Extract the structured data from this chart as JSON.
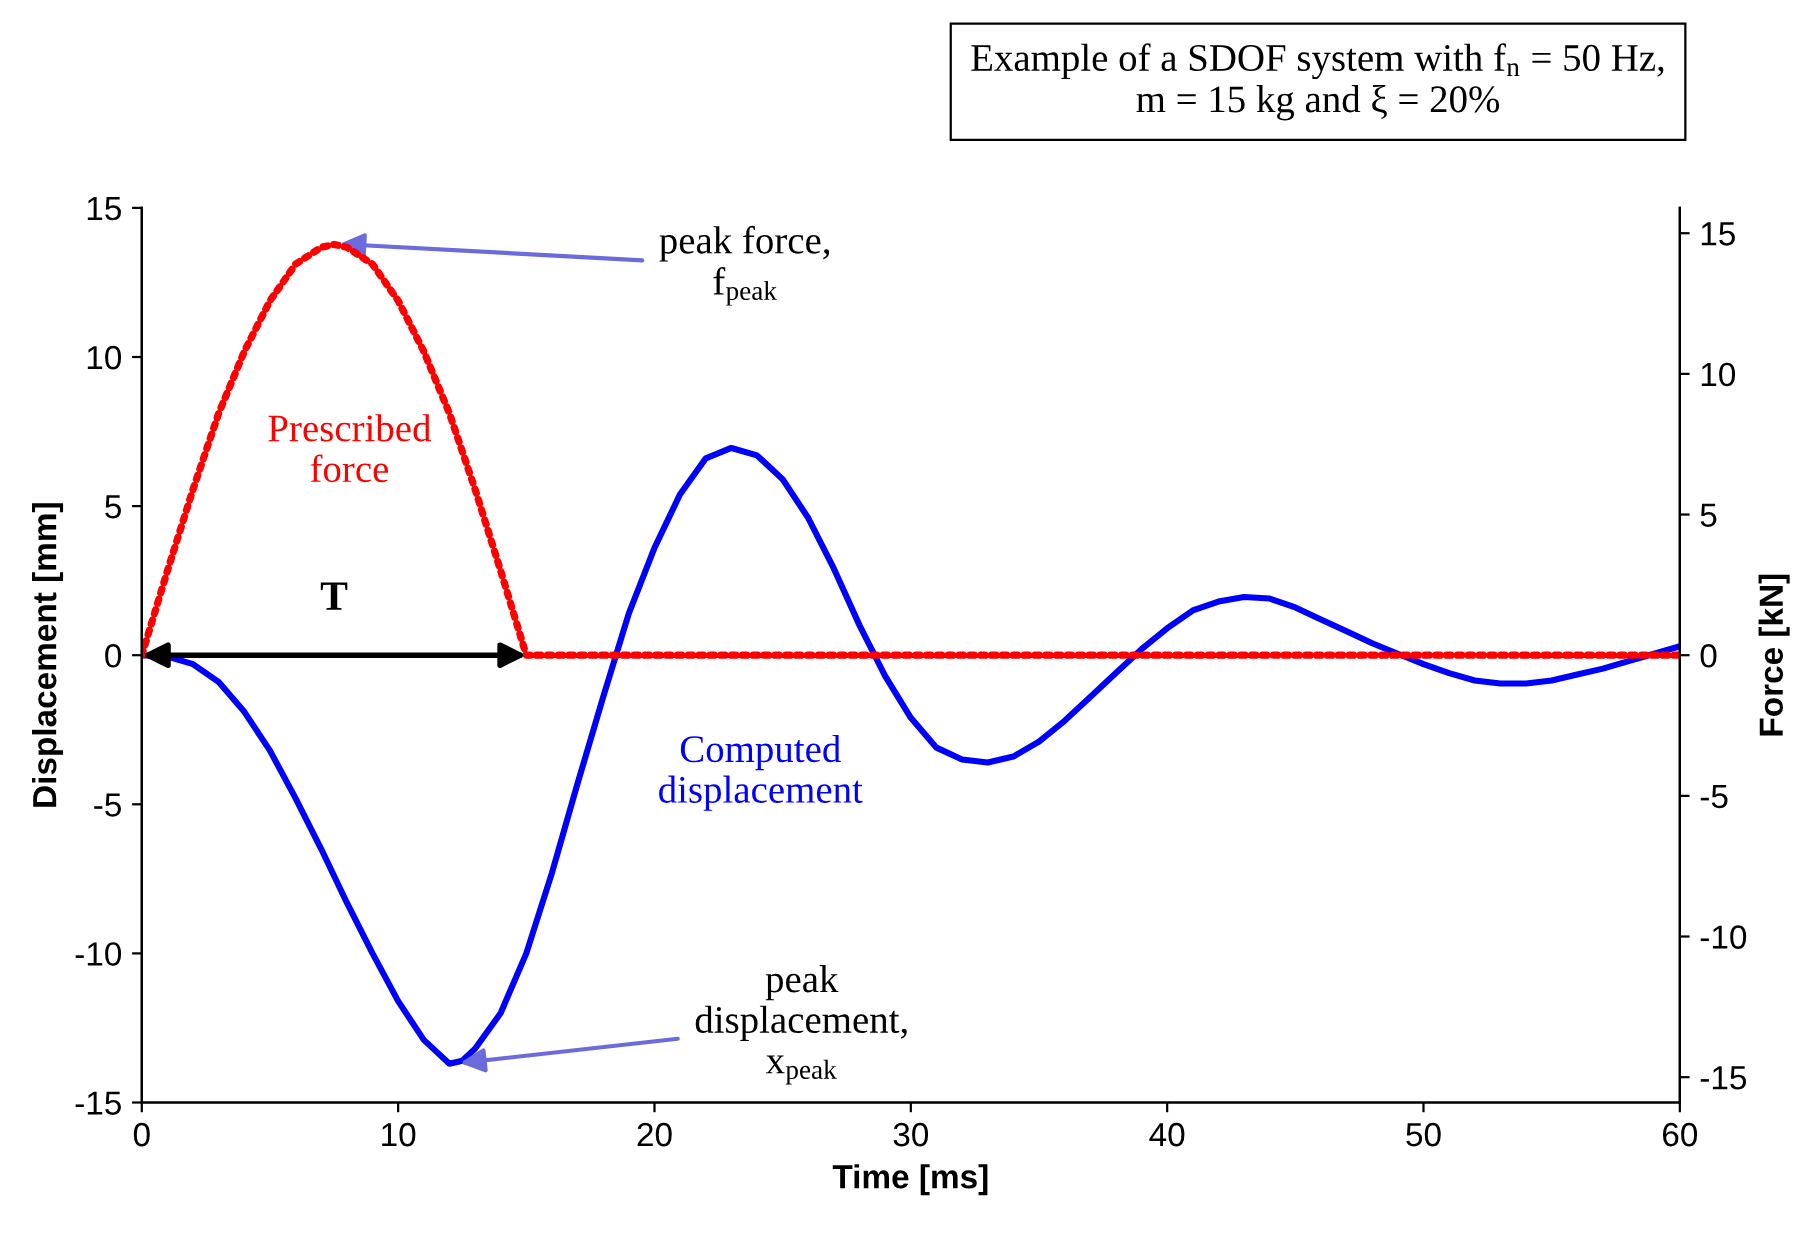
{
  "chart_data": {
    "type": "line",
    "title": "Example of a SDOF system with f$_{n}$ = 50 Hz,\nm = 15 kg and ξ = 20%",
    "xlabel": "Time [ms]",
    "ylabel": "Displacement [mm]",
    "y2label": "Force [kN]",
    "xlim": [
      0,
      60
    ],
    "xticks": [
      0,
      10,
      20,
      30,
      40,
      50,
      60
    ],
    "ylim": [
      -15,
      15
    ],
    "yticks": [
      -15,
      -10,
      -5,
      0,
      5,
      10,
      15
    ],
    "y2lim": [
      -15.9,
      15.9
    ],
    "y2ticks": [
      -15,
      -10,
      -5,
      0,
      5,
      10,
      15
    ],
    "grid": false,
    "series": [
      {
        "name": "Prescribed force",
        "axis": "y2",
        "color": "#ff0000",
        "line_style": "dotted",
        "x": [
          0,
          1,
          2,
          3,
          4,
          5,
          6,
          7,
          7.5,
          8,
          9,
          10,
          11,
          12,
          13,
          14,
          15,
          60
        ],
        "values": [
          0,
          3.0,
          5.9,
          8.6,
          10.8,
          12.6,
          13.9,
          14.5,
          14.6,
          14.5,
          13.9,
          12.6,
          10.8,
          8.6,
          5.9,
          3.0,
          0,
          0
        ]
      },
      {
        "name": "Computed displacement",
        "axis": "y",
        "color": "#0000ff",
        "line_style": "solid",
        "x": [
          0,
          1,
          2,
          3,
          4,
          5,
          6,
          7,
          8,
          9,
          10,
          11,
          12,
          12.5,
          13,
          14,
          15,
          16,
          17,
          18,
          18.5,
          19,
          20,
          21,
          22,
          23,
          24,
          25,
          26,
          27,
          28,
          29,
          30,
          31,
          32,
          33,
          34,
          35,
          36,
          37,
          38,
          39,
          40,
          41,
          42,
          43,
          44,
          45,
          46,
          47,
          48,
          49,
          50,
          51,
          52,
          53,
          54,
          55,
          56,
          57,
          58,
          59,
          60
        ],
        "values": [
          0,
          -0.05,
          -0.3,
          -0.9,
          -1.9,
          -3.2,
          -4.8,
          -6.5,
          -8.3,
          -10.0,
          -11.6,
          -12.9,
          -13.7,
          -13.6,
          -13.2,
          -12.0,
          -10.0,
          -7.3,
          -4.3,
          -1.4,
          0,
          1.4,
          3.6,
          5.4,
          6.6,
          6.95,
          6.7,
          5.9,
          4.6,
          2.9,
          1.0,
          -0.7,
          -2.1,
          -3.1,
          -3.5,
          -3.6,
          -3.4,
          -2.9,
          -2.2,
          -1.4,
          -0.6,
          0.2,
          0.9,
          1.5,
          1.8,
          1.95,
          1.9,
          1.6,
          1.2,
          0.8,
          0.4,
          0.05,
          -0.3,
          -0.6,
          -0.85,
          -0.95,
          -0.95,
          -0.85,
          -0.65,
          -0.45,
          -0.2,
          0.05,
          0.3
        ]
      }
    ],
    "annotations": [
      {
        "text": "peak force,\nf$_{peak}$",
        "x": 7.5,
        "y": 13.8
      },
      {
        "text": "peak\ndisplacement,\nx$_{peak}$",
        "x": 12.2,
        "y": -13.7
      },
      "T"
    ]
  }
}
